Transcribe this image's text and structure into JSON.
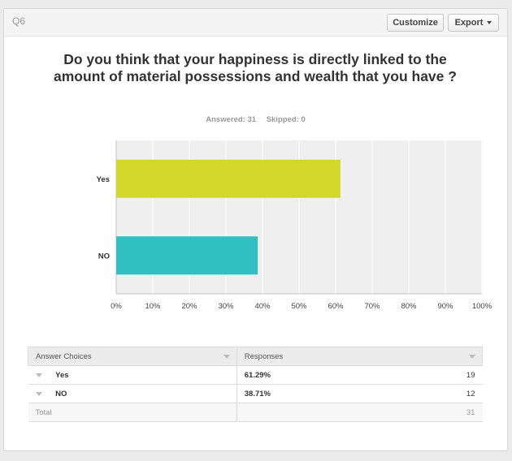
{
  "header": {
    "question_number": "Q6",
    "customize_label": "Customize",
    "export_label": "Export",
    "export_icon": "caret-down-icon"
  },
  "question": {
    "title": "Do you think that your happiness is directly linked to the amount of material possessions and wealth that you have ?",
    "answered": "Answered: 31",
    "skipped": "Skipped: 0"
  },
  "chart_data": {
    "type": "bar",
    "orientation": "horizontal",
    "categories": [
      "Yes",
      "NO"
    ],
    "values": [
      61.29,
      38.71
    ],
    "colors": [
      "#d3d62b",
      "#31bfc1"
    ],
    "xlim": [
      0,
      100
    ],
    "x_ticks": [
      "0%",
      "10%",
      "20%",
      "30%",
      "40%",
      "50%",
      "60%",
      "70%",
      "80%",
      "90%",
      "100%"
    ],
    "grid": true,
    "plot_background": "#efefef"
  },
  "table": {
    "columns": [
      "Answer Choices",
      "Responses"
    ],
    "rows": [
      {
        "choice": "Yes",
        "percent": "61.29%",
        "count": "19"
      },
      {
        "choice": "NO",
        "percent": "38.71%",
        "count": "12"
      }
    ],
    "total_label": "Total",
    "total_count": "31"
  }
}
